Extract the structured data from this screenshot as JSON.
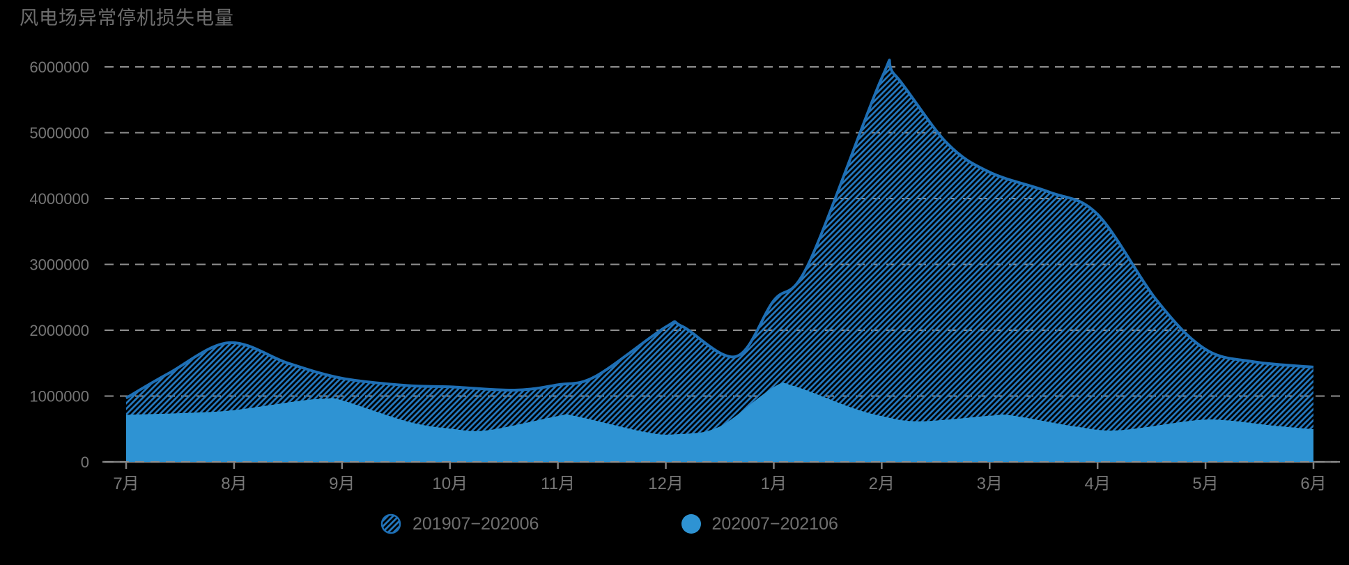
{
  "chart_data": {
    "type": "area",
    "title": "风电场异常停机损失电量",
    "categories": [
      "7月",
      "8月",
      "9月",
      "10月",
      "11月",
      "12月",
      "1月",
      "2月",
      "3月",
      "4月",
      "5月",
      "6月"
    ],
    "y_tick_labels": [
      "0",
      "1000000",
      "2000000",
      "3000000",
      "4000000",
      "5000000",
      "6000000"
    ],
    "ylim": [
      0,
      6000000
    ],
    "y_tick_step": 1000000,
    "grid": "horizontal-dashed",
    "legend_position": "bottom-center",
    "background": "#000000",
    "series": [
      {
        "name": "201907−202006",
        "style": "hatched-area",
        "line_color": "#1E6FB5",
        "hatch_color": "#2478BE",
        "values": [
          970000,
          1800000,
          1270000,
          1140000,
          1170000,
          2050000,
          2450000,
          5830000,
          4400000,
          3760000,
          1710000,
          1440000
        ],
        "spline_samples": [
          [
            0,
            970000
          ],
          [
            0.4,
            1350000
          ],
          [
            0.95,
            1810000
          ],
          [
            1.5,
            1500000
          ],
          [
            2,
            1270000
          ],
          [
            2.6,
            1160000
          ],
          [
            3,
            1140000
          ],
          [
            3.6,
            1090000
          ],
          [
            4,
            1170000
          ],
          [
            4.35,
            1300000
          ],
          [
            5,
            2050000
          ],
          [
            5.15,
            2060000
          ],
          [
            5.65,
            1600000
          ],
          [
            6,
            2450000
          ],
          [
            6.32,
            3000000
          ],
          [
            7,
            5830000
          ],
          [
            7.12,
            5880000
          ],
          [
            7.6,
            4850000
          ],
          [
            8,
            4400000
          ],
          [
            8.55,
            4100000
          ],
          [
            9,
            3760000
          ],
          [
            9.55,
            2450000
          ],
          [
            10,
            1710000
          ],
          [
            10.45,
            1520000
          ],
          [
            11,
            1440000
          ]
        ]
      },
      {
        "name": "202007−202106",
        "style": "solid-area",
        "fill_color": "#2E93D3",
        "values": [
          700000,
          770000,
          920000,
          490000,
          680000,
          405000,
          1120000,
          680000,
          690000,
          465000,
          620000,
          480000
        ],
        "spline_samples": [
          [
            0,
            700000
          ],
          [
            0.6,
            730000
          ],
          [
            1,
            770000
          ],
          [
            1.6,
            910000
          ],
          [
            1.85,
            945000
          ],
          [
            2,
            920000
          ],
          [
            2.6,
            600000
          ],
          [
            3,
            490000
          ],
          [
            3.35,
            465000
          ],
          [
            4,
            680000
          ],
          [
            4.15,
            685000
          ],
          [
            4.8,
            440000
          ],
          [
            5.1,
            405000
          ],
          [
            5.5,
            520000
          ],
          [
            6,
            1120000
          ],
          [
            6.18,
            1140000
          ],
          [
            6.7,
            820000
          ],
          [
            7,
            680000
          ],
          [
            7.35,
            600000
          ],
          [
            8,
            685000
          ],
          [
            8.2,
            690000
          ],
          [
            8.8,
            520000
          ],
          [
            9.2,
            465000
          ],
          [
            9.9,
            615000
          ],
          [
            10.2,
            615000
          ],
          [
            10.6,
            540000
          ],
          [
            11,
            480000
          ]
        ]
      }
    ]
  },
  "colors": {
    "background": "#000000",
    "title_text": "#6e6e6e",
    "axis_text": "#767676",
    "gridline": "#8f8f8f",
    "axis_line": "#7f7f7f",
    "series1_line": "#1E6FB5",
    "series1_hatch": "#2478BE",
    "series2_fill": "#2E93D3"
  }
}
